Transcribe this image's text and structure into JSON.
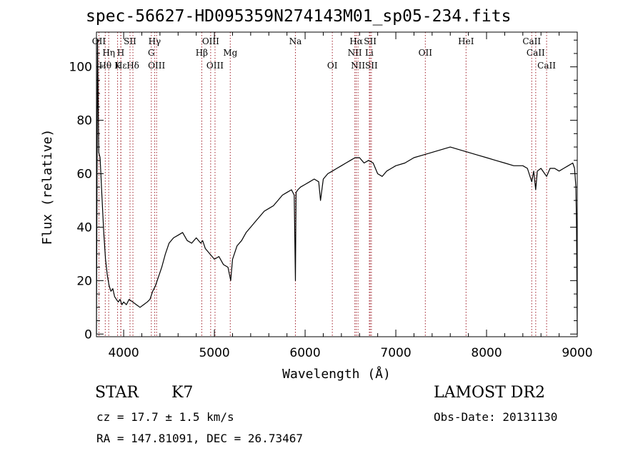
{
  "header": {
    "title": "spec-56627-HD095359N274143M01_sp05-234.fits"
  },
  "info": {
    "object_class": "STAR",
    "subclass": "K7",
    "survey": "LAMOST DR2",
    "cz": "cz = 17.7 ± 1.5 km/s",
    "obs_date": "Obs-Date: 20131130",
    "coords": "RA = 147.81091, DEC =  26.73467"
  },
  "colors": {
    "line_marker": "#a0202a",
    "spectrum": "#000000"
  },
  "chart_data": {
    "type": "line",
    "title": "spec-56627-HD095359N274143M01_sp05-234.fits",
    "xlabel": "Wavelength (Å)",
    "ylabel": "Flux (relative)",
    "xlim": [
      3700,
      9000
    ],
    "ylim": [
      -1,
      113
    ],
    "grid": false,
    "x_ticks": [
      4000,
      5000,
      6000,
      7000,
      8000,
      9000
    ],
    "y_ticks": [
      0,
      20,
      40,
      60,
      80,
      100
    ],
    "series": [
      {
        "x": [
          3700,
          3712,
          3725,
          3740,
          3760,
          3780,
          3800,
          3820,
          3840,
          3860,
          3880,
          3900,
          3920,
          3940,
          3960,
          3980,
          4000,
          4030,
          4060,
          4100,
          4140,
          4180,
          4220,
          4260,
          4290,
          4320,
          4350,
          4380,
          4420,
          4460,
          4500,
          4550,
          4600,
          4650,
          4700,
          4750,
          4800,
          4850,
          4870,
          4900,
          4950,
          5000,
          5050,
          5100,
          5150,
          5180,
          5200,
          5250,
          5300,
          5350,
          5400,
          5450,
          5500,
          5550,
          5600,
          5650,
          5700,
          5750,
          5800,
          5850,
          5880,
          5893,
          5900,
          5920,
          5950,
          6000,
          6050,
          6100,
          6150,
          6170,
          6200,
          6250,
          6300,
          6350,
          6400,
          6450,
          6500,
          6550,
          6600,
          6650,
          6700,
          6750,
          6800,
          6850,
          6900,
          6950,
          7000,
          7100,
          7200,
          7300,
          7400,
          7500,
          7600,
          7700,
          7800,
          7900,
          8000,
          8100,
          8200,
          8300,
          8400,
          8450,
          8498,
          8520,
          8542,
          8560,
          8600,
          8662,
          8700,
          8750,
          8800,
          8850,
          8900,
          8950,
          8970,
          8985,
          8992,
          9000
        ],
        "y": [
          0,
          110,
          68,
          66,
          52,
          38,
          28,
          22,
          18,
          16,
          17,
          14,
          13,
          12,
          13,
          11,
          12,
          11,
          13,
          12,
          11,
          10,
          11,
          12,
          13,
          16,
          18,
          21,
          25,
          30,
          34,
          36,
          37,
          38,
          35,
          34,
          36,
          34,
          35,
          32,
          30,
          28,
          29,
          26,
          25,
          20,
          28,
          33,
          35,
          38,
          40,
          42,
          44,
          46,
          47,
          48,
          50,
          52,
          53,
          54,
          52,
          20,
          53,
          54,
          55,
          56,
          57,
          58,
          57,
          50,
          58,
          60,
          61,
          62,
          63,
          64,
          65,
          66,
          66,
          64,
          65,
          64,
          60,
          59,
          61,
          62,
          63,
          64,
          66,
          67,
          68,
          69,
          70,
          69,
          68,
          67,
          66,
          65,
          64,
          63,
          63,
          62,
          57,
          61,
          54,
          61,
          62,
          59,
          62,
          62,
          61,
          62,
          63,
          64,
          62,
          55,
          40,
          0
        ]
      }
    ],
    "lines_top": [
      {
        "label": "OII",
        "wl": 3727
      },
      {
        "label": "SII",
        "wl": 4070
      },
      {
        "label": "Hγ",
        "wl": 4341
      },
      {
        "label": "OIII",
        "wl": 4959
      },
      {
        "label": "Na",
        "wl": 5893
      },
      {
        "label": "Hα",
        "wl": 6563
      },
      {
        "label": "SII",
        "wl": 6717
      },
      {
        "label": "HeI",
        "wl": 7774
      },
      {
        "label": "CaII",
        "wl": 8498
      }
    ],
    "lines_mid": [
      {
        "label": "Hη",
        "wl": 3835
      },
      {
        "label": "H",
        "wl": 3968
      },
      {
        "label": "G",
        "wl": 4305
      },
      {
        "label": "Hβ",
        "wl": 4861
      },
      {
        "label": "Mg",
        "wl": 5175
      },
      {
        "label": "NII",
        "wl": 6548
      },
      {
        "label": "Li",
        "wl": 6708
      },
      {
        "label": "OII",
        "wl": 7325
      },
      {
        "label": "CaII",
        "wl": 8542
      }
    ],
    "lines_low": [
      {
        "label": "Hθ",
        "wl": 3797
      },
      {
        "label": "Hε",
        "wl": 3970
      },
      {
        "label": "K",
        "wl": 3933
      },
      {
        "label": "Hδ",
        "wl": 4102
      },
      {
        "label": "OIII",
        "wl": 4363
      },
      {
        "label": "OIII",
        "wl": 5007
      },
      {
        "label": "OI",
        "wl": 6300
      },
      {
        "label": "NII",
        "wl": 6583
      },
      {
        "label": "SII",
        "wl": 6731
      },
      {
        "label": "CaII",
        "wl": 8662
      }
    ]
  }
}
